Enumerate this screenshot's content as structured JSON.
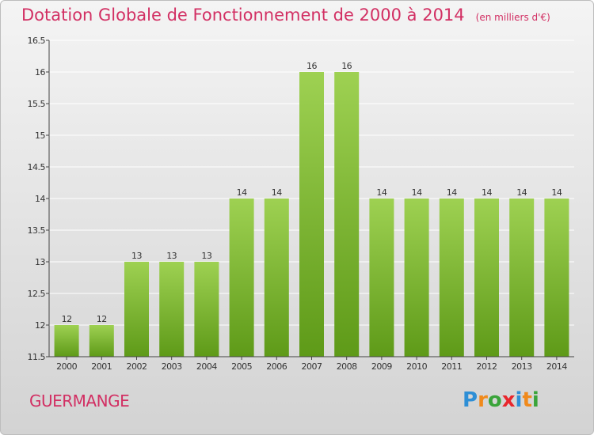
{
  "header": {
    "title": "Dotation Globale de Fonctionnement de 2000 à 2014",
    "subtitle": "(en milliers d'€)"
  },
  "footer": {
    "town": "GUERMANGE",
    "logo_text": "Proxiti",
    "logo_letters": [
      {
        "ch": "P",
        "color": "#2e8fd6"
      },
      {
        "ch": "r",
        "color": "#f08a1c"
      },
      {
        "ch": "o",
        "color": "#3aa43a"
      },
      {
        "ch": "x",
        "color": "#e8262c"
      },
      {
        "ch": "i",
        "color": "#2e8fd6"
      },
      {
        "ch": "t",
        "color": "#f08a1c"
      },
      {
        "ch": "i",
        "color": "#3aa43a"
      }
    ]
  },
  "colors": {
    "title": "#d22f63",
    "bar_top": "#9ed152",
    "bar_bottom": "#5e9a18",
    "axis": "#444444",
    "grid": "#ffffff"
  },
  "chart_data": {
    "type": "bar",
    "categories": [
      "2000",
      "2001",
      "2002",
      "2003",
      "2004",
      "2005",
      "2006",
      "2007",
      "2008",
      "2009",
      "2010",
      "2011",
      "2012",
      "2013",
      "2014"
    ],
    "values": [
      12,
      12,
      13,
      13,
      13,
      14,
      14,
      16,
      16,
      14,
      14,
      14,
      14,
      14,
      14
    ],
    "data_labels": [
      "12",
      "12",
      "13",
      "13",
      "13",
      "14",
      "14",
      "16",
      "16",
      "14",
      "14",
      "14",
      "14",
      "14",
      "14"
    ],
    "ylim": [
      11.5,
      16.5
    ],
    "yticks": [
      "11.5",
      "12",
      "12.5",
      "13",
      "13.5",
      "14",
      "14.5",
      "15",
      "15.5",
      "16",
      "16.5"
    ],
    "grid": true,
    "legend": "none"
  }
}
